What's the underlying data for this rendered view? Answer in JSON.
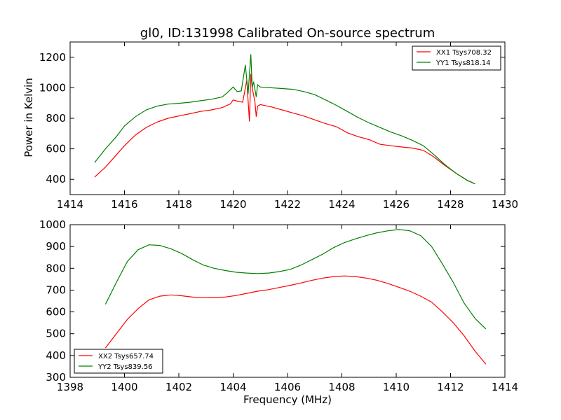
{
  "chart_data": [
    {
      "type": "line",
      "title": "gl0, ID:131998 Calibrated On-source spectrum",
      "xlabel": "",
      "ylabel": "Power in Kelvin",
      "xlim": [
        1414,
        1430
      ],
      "ylim": [
        300,
        1300
      ],
      "xticks": [
        "1414",
        "1416",
        "1418",
        "1420",
        "1422",
        "1424",
        "1426",
        "1428",
        "1430"
      ],
      "yticks": [
        "400",
        "600",
        "800",
        "1000",
        "1200"
      ],
      "xtick_values": [
        1414,
        1416,
        1418,
        1420,
        1422,
        1424,
        1426,
        1428,
        1430
      ],
      "ytick_values": [
        400,
        600,
        800,
        1000,
        1200
      ],
      "legend_position": "top-right",
      "grid": false,
      "series": [
        {
          "name": "XX1 Tsys708.32",
          "color": "#ff0000",
          "x": [
            1414.9,
            1415.3,
            1415.7,
            1416.0,
            1416.4,
            1416.8,
            1417.2,
            1417.6,
            1418.0,
            1418.4,
            1418.8,
            1419.2,
            1419.6,
            1419.9,
            1420.0,
            1420.2,
            1420.35,
            1420.5,
            1420.6,
            1420.65,
            1420.7,
            1420.8,
            1420.85,
            1420.9,
            1421.0,
            1421.4,
            1421.8,
            1422.2,
            1422.6,
            1423.0,
            1423.4,
            1423.8,
            1424.2,
            1424.6,
            1425.0,
            1425.4,
            1425.8,
            1426.2,
            1426.6,
            1427.0,
            1427.4,
            1427.8,
            1428.2,
            1428.6,
            1428.9
          ],
          "y": [
            415,
            480,
            560,
            620,
            690,
            740,
            775,
            800,
            815,
            830,
            845,
            855,
            870,
            895,
            920,
            910,
            905,
            1050,
            780,
            1090,
            1000,
            910,
            810,
            880,
            890,
            875,
            855,
            835,
            815,
            790,
            765,
            745,
            705,
            680,
            660,
            630,
            620,
            612,
            605,
            590,
            545,
            490,
            440,
            395,
            370
          ]
        },
        {
          "name": "YY1 Tsys818.14",
          "color": "#008000",
          "x": [
            1414.9,
            1415.3,
            1415.7,
            1416.0,
            1416.4,
            1416.8,
            1417.2,
            1417.6,
            1418.0,
            1418.4,
            1418.8,
            1419.2,
            1419.6,
            1419.8,
            1420.0,
            1420.15,
            1420.3,
            1420.45,
            1420.55,
            1420.65,
            1420.7,
            1420.75,
            1420.85,
            1420.9,
            1421.0,
            1421.4,
            1421.8,
            1422.2,
            1422.6,
            1423.0,
            1423.4,
            1423.8,
            1424.2,
            1424.6,
            1425.0,
            1425.4,
            1425.8,
            1426.2,
            1426.6,
            1427.0,
            1427.4,
            1427.8,
            1428.2,
            1428.6,
            1428.9
          ],
          "y": [
            510,
            600,
            680,
            750,
            810,
            855,
            880,
            893,
            898,
            905,
            915,
            925,
            940,
            970,
            1005,
            975,
            980,
            1150,
            960,
            1220,
            1000,
            1040,
            940,
            1020,
            1005,
            1000,
            995,
            990,
            975,
            955,
            920,
            885,
            845,
            805,
            770,
            740,
            710,
            685,
            655,
            620,
            560,
            495,
            440,
            395,
            370
          ]
        }
      ]
    },
    {
      "type": "line",
      "title": "",
      "xlabel": "Frequency (MHz)",
      "ylabel": "",
      "xlim": [
        1398,
        1414
      ],
      "ylim": [
        300,
        1000
      ],
      "xticks": [
        "1398",
        "1400",
        "1402",
        "1404",
        "1406",
        "1408",
        "1410",
        "1412",
        "1414"
      ],
      "yticks": [
        "300",
        "400",
        "500",
        "600",
        "700",
        "800",
        "900",
        "1000"
      ],
      "xtick_values": [
        1398,
        1400,
        1402,
        1404,
        1406,
        1408,
        1410,
        1412,
        1414
      ],
      "ytick_values": [
        300,
        400,
        500,
        600,
        700,
        800,
        900,
        1000
      ],
      "legend_position": "bottom-left",
      "grid": false,
      "series": [
        {
          "name": "XX2 Tsys657.74",
          "color": "#ff0000",
          "x": [
            1399.3,
            1399.7,
            1400.1,
            1400.5,
            1400.9,
            1401.3,
            1401.7,
            1402.1,
            1402.5,
            1402.9,
            1403.3,
            1403.7,
            1404.1,
            1404.5,
            1404.9,
            1405.3,
            1405.7,
            1406.1,
            1406.5,
            1406.9,
            1407.3,
            1407.7,
            1408.1,
            1408.5,
            1408.9,
            1409.3,
            1409.7,
            1410.1,
            1410.5,
            1410.9,
            1411.3,
            1411.7,
            1412.1,
            1412.5,
            1412.9,
            1413.3
          ],
          "y": [
            435,
            500,
            565,
            615,
            655,
            672,
            678,
            674,
            668,
            665,
            666,
            668,
            675,
            685,
            695,
            702,
            712,
            722,
            733,
            745,
            755,
            762,
            765,
            762,
            755,
            745,
            730,
            713,
            695,
            672,
            645,
            600,
            550,
            490,
            420,
            360
          ]
        },
        {
          "name": "YY2 Tsys839.56",
          "color": "#008000",
          "x": [
            1399.3,
            1399.7,
            1400.1,
            1400.5,
            1400.9,
            1401.3,
            1401.7,
            1402.1,
            1402.5,
            1402.9,
            1403.3,
            1403.7,
            1404.1,
            1404.5,
            1404.9,
            1405.3,
            1405.7,
            1406.1,
            1406.5,
            1406.9,
            1407.3,
            1407.7,
            1408.1,
            1408.5,
            1408.9,
            1409.3,
            1409.7,
            1410.1,
            1410.5,
            1410.9,
            1411.3,
            1411.7,
            1412.1,
            1412.5,
            1412.9,
            1413.3
          ],
          "y": [
            635,
            735,
            830,
            885,
            908,
            905,
            890,
            868,
            840,
            815,
            800,
            790,
            782,
            778,
            776,
            778,
            785,
            795,
            815,
            840,
            865,
            895,
            918,
            935,
            950,
            963,
            972,
            978,
            972,
            950,
            900,
            820,
            735,
            640,
            570,
            522
          ]
        }
      ]
    }
  ]
}
